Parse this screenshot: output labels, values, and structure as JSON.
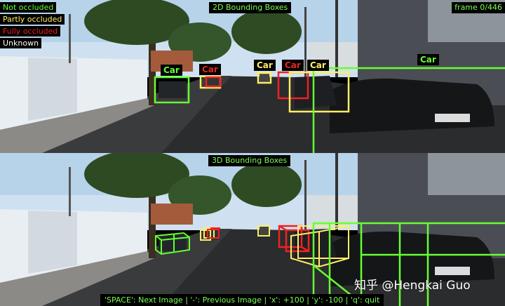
{
  "colors": {
    "not_occluded": "#66ff33",
    "partly_occluded": "#ffee66",
    "fully_occluded": "#ee2222",
    "unknown": "#ffffff",
    "overlay_text": "#7cff52"
  },
  "legend": [
    {
      "label": "Not occluded",
      "color": "#66ff33"
    },
    {
      "label": "Partly occluded",
      "color": "#ffee66"
    },
    {
      "label": "Fully occluded",
      "color": "#ee2222"
    },
    {
      "label": "Unknown",
      "color": "#ffffff"
    }
  ],
  "top_panel": {
    "title": "2D Bounding Boxes",
    "frame": "frame 0/446",
    "car_labels": [
      "Car",
      "Car",
      "Car",
      "Car",
      "Car",
      "Car"
    ]
  },
  "bottom_panel": {
    "title": "3D Bounding Boxes",
    "help": "'SPACE': Next Image  |  '-': Previous Image  |  'x': +100  |  'y': -100  |  'q': quit"
  },
  "watermark": "知乎 @Hengkai Guo"
}
